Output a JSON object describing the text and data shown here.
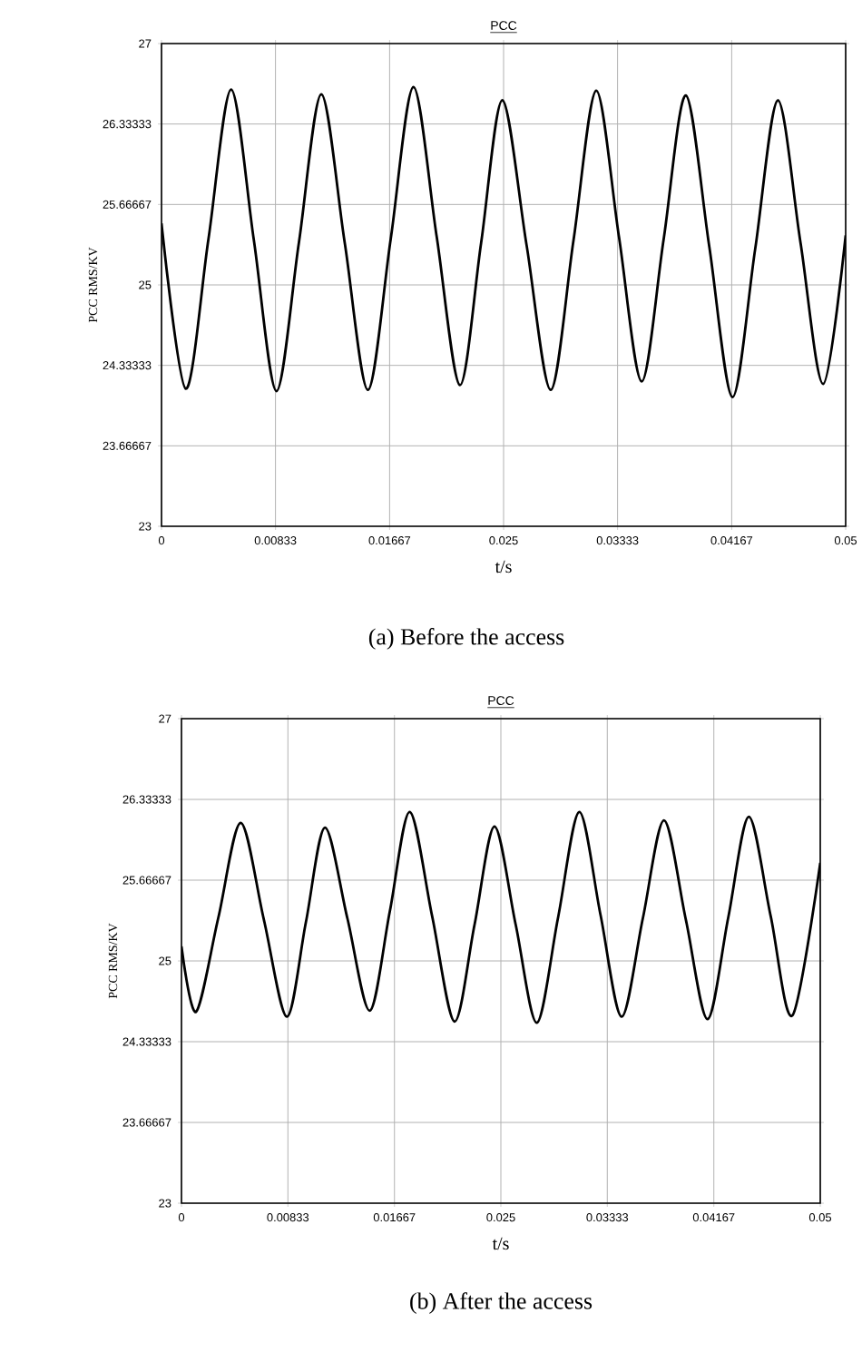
{
  "chart_data": [
    {
      "type": "line",
      "title": "PCC",
      "xlabel": "t/s",
      "ylabel": "PCC RMS/KV",
      "annotations": [
        "(a) Before the access"
      ],
      "x": [
        0,
        0.00177,
        0.00343,
        0.00509,
        0.00675,
        0.0084,
        0.01004,
        0.01168,
        0.01339,
        0.01509,
        0.01675,
        0.01841,
        0.02011,
        0.02181,
        0.02336,
        0.02491,
        0.02668,
        0.02845,
        0.03011,
        0.03177,
        0.03343,
        0.03509,
        0.0367,
        0.03832,
        0.04003,
        0.04173,
        0.04339,
        0.04504,
        0.0467,
        0.04836,
        0.05
      ],
      "series": [
        {
          "color": "#000000",
          "values": [
            25.51,
            24.14,
            25.38,
            26.62,
            25.37,
            24.12,
            25.35,
            26.58,
            25.35,
            24.13,
            25.38,
            26.64,
            25.4,
            24.17,
            25.35,
            26.53,
            25.33,
            24.13,
            25.37,
            26.61,
            25.4,
            24.2,
            25.38,
            26.57,
            25.32,
            24.07,
            25.3,
            26.53,
            25.35,
            24.18,
            25.41
          ]
        }
      ],
      "xlim": [
        0,
        0.05
      ],
      "ylim": [
        23,
        27
      ],
      "xticks": [
        0,
        0.00833,
        0.01667,
        0.025,
        0.03333,
        0.04167,
        0.05
      ],
      "yticks": [
        23,
        23.66667,
        24.33333,
        25,
        25.66667,
        26.33333,
        27
      ],
      "grid": true
    },
    {
      "type": "line",
      "title": "PCC",
      "xlabel": "t/s",
      "ylabel": "PCC RMS/KV",
      "annotations": [
        "(b) After the access"
      ],
      "x": [
        0,
        0.00114,
        0.00289,
        0.00464,
        0.00645,
        0.00825,
        0.00974,
        0.01123,
        0.01299,
        0.01474,
        0.01631,
        0.01787,
        0.01962,
        0.02137,
        0.02294,
        0.0245,
        0.02616,
        0.02782,
        0.02948,
        0.03114,
        0.0328,
        0.03445,
        0.03611,
        0.03777,
        0.03948,
        0.04118,
        0.0428,
        0.04441,
        0.04612,
        0.04782,
        0.05
      ],
      "series": [
        {
          "color": "#000000",
          "values": [
            25.12,
            24.58,
            25.36,
            26.14,
            25.34,
            24.54,
            25.32,
            26.1,
            25.35,
            24.59,
            25.41,
            26.23,
            25.37,
            24.5,
            25.3,
            26.11,
            25.3,
            24.49,
            25.36,
            26.23,
            25.38,
            24.54,
            25.35,
            26.16,
            25.34,
            24.52,
            25.36,
            26.19,
            25.37,
            24.55,
            25.81
          ]
        }
      ],
      "xlim": [
        0,
        0.05
      ],
      "ylim": [
        23,
        27
      ],
      "xticks": [
        0,
        0.00833,
        0.01667,
        0.025,
        0.03333,
        0.04167,
        0.05
      ],
      "yticks": [
        23,
        23.66667,
        24.33333,
        25,
        25.66667,
        26.33333,
        27
      ],
      "grid": true
    }
  ]
}
